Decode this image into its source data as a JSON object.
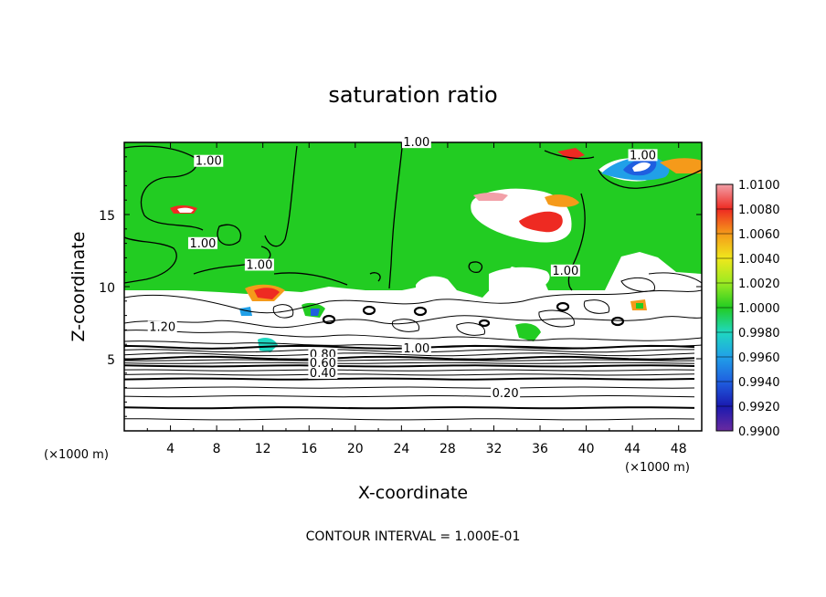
{
  "chart_data": {
    "type": "heatmap",
    "title": "saturation ratio",
    "xlabel": "X-coordinate",
    "ylabel": "Z-coordinate",
    "x_unit": "(×1000 m)",
    "y_unit": "(×1000 m)",
    "xlim": [
      0,
      50
    ],
    "ylim": [
      0,
      20
    ],
    "x_ticks": [
      4,
      8,
      12,
      16,
      20,
      24,
      28,
      32,
      36,
      40,
      44,
      48
    ],
    "y_ticks": [
      5,
      10,
      15
    ],
    "footer": "CONTOUR INTERVAL = 1.000E-01",
    "colorbar": {
      "min": 0.99,
      "max": 1.01,
      "levels": [
        "0.9900",
        "0.9920",
        "0.9940",
        "0.9960",
        "0.9980",
        "1.0000",
        "1.0020",
        "1.0040",
        "1.0060",
        "1.0080",
        "1.0100"
      ],
      "colors": [
        "#6a2aa0",
        "#1a1ab0",
        "#1f5fe0",
        "#21a0e8",
        "#1fd8c0",
        "#22cc22",
        "#9bea22",
        "#f0e81c",
        "#f59a1a",
        "#ee2a22",
        "#f2a0a8"
      ]
    },
    "contour_labels": [
      {
        "text": "1.00",
        "x": 25.3,
        "z": 19.8
      },
      {
        "text": "1.00",
        "x": 7.3,
        "z": 18.5
      },
      {
        "text": "1.00",
        "x": 44.9,
        "z": 18.9
      },
      {
        "text": "1.00",
        "x": 6.8,
        "z": 12.8
      },
      {
        "text": "1.00",
        "x": 11.7,
        "z": 11.3
      },
      {
        "text": "1.00",
        "x": 38.2,
        "z": 10.9
      },
      {
        "text": "1.20",
        "x": 3.3,
        "z": 7.0
      },
      {
        "text": "1.00",
        "x": 25.3,
        "z": 5.5
      },
      {
        "text": "0.80",
        "x": 17.2,
        "z": 5.1
      },
      {
        "text": "0.60",
        "x": 17.2,
        "z": 4.5
      },
      {
        "text": "0.40",
        "x": 17.2,
        "z": 3.8
      },
      {
        "text": "0.20",
        "x": 33.0,
        "z": 2.4
      }
    ],
    "horizontal_contours_z": [
      0.8,
      1.6,
      2.4,
      3.0,
      3.6,
      3.9,
      4.2,
      4.5,
      4.7,
      4.9,
      5.05,
      5.3,
      5.55,
      5.8
    ]
  }
}
